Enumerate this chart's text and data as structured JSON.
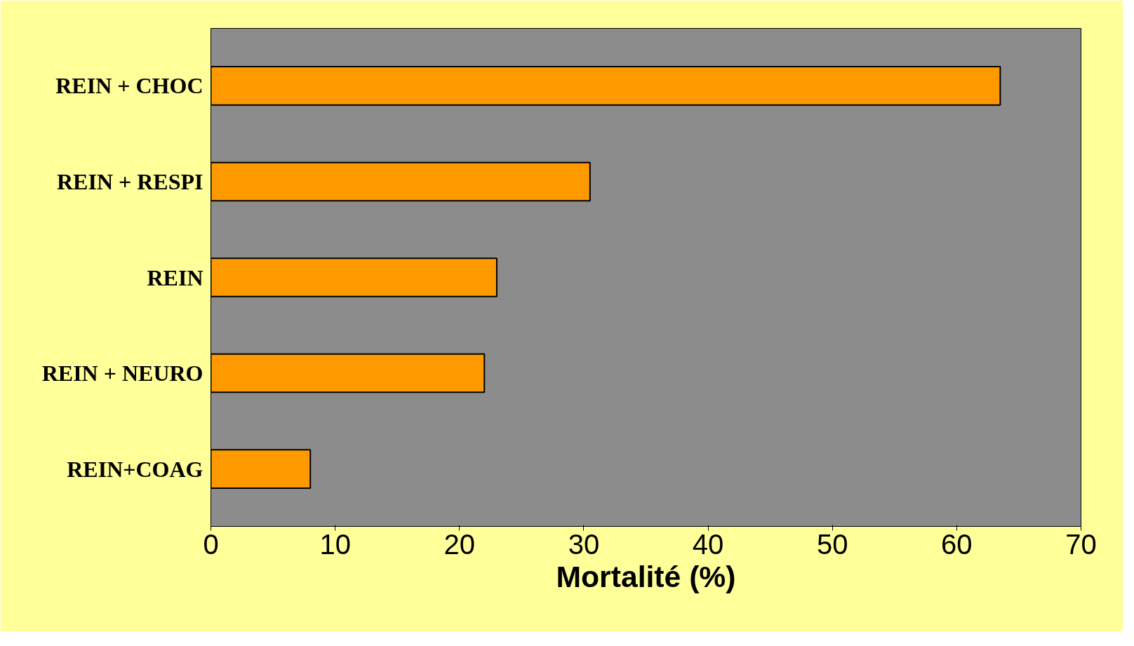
{
  "chart_data": {
    "type": "bar",
    "orientation": "horizontal",
    "categories": [
      "REIN + CHOC",
      "REIN + RESPI",
      "REIN",
      "REIN + NEURO",
      "REIN+COAG"
    ],
    "values": [
      63.5,
      30.5,
      23,
      22,
      8
    ],
    "color": "#ff9900",
    "xlabel": "Mortalité (%)",
    "xlim": [
      0,
      70
    ],
    "xticks": [
      0,
      10,
      20,
      30,
      40,
      50,
      60,
      70
    ],
    "grid": false
  }
}
